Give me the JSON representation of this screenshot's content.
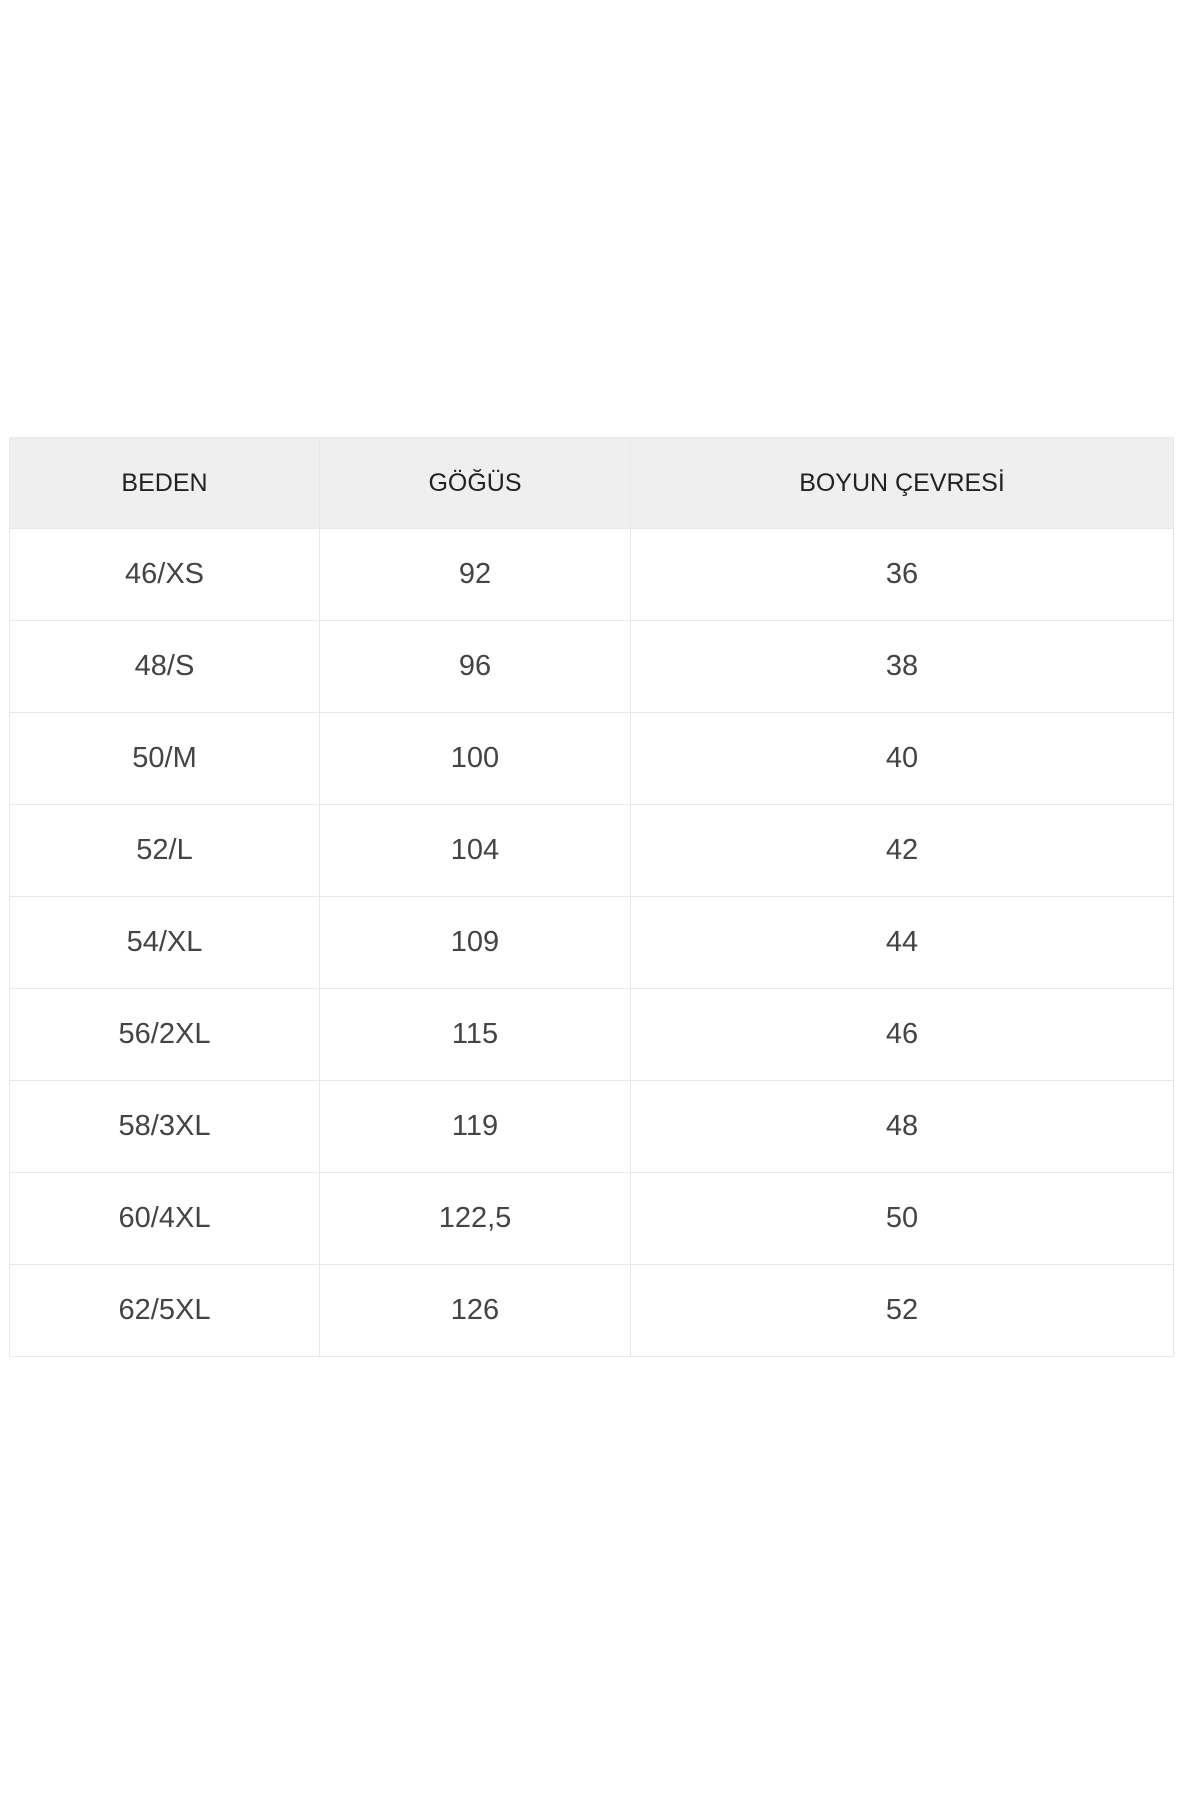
{
  "table": {
    "headers": [
      "BEDEN",
      "GÖĞÜS",
      "BOYUN ÇEVRESİ"
    ],
    "rows": [
      [
        "46/XS",
        "92",
        "36"
      ],
      [
        "48/S",
        "96",
        "38"
      ],
      [
        "50/M",
        "100",
        "40"
      ],
      [
        "52/L",
        "104",
        "42"
      ],
      [
        "54/XL",
        "109",
        "44"
      ],
      [
        "56/2XL",
        "115",
        "46"
      ],
      [
        "58/3XL",
        "119",
        "48"
      ],
      [
        "60/4XL",
        "122,5",
        "50"
      ],
      [
        "62/5XL",
        "126",
        "52"
      ]
    ]
  },
  "colors": {
    "header_bg": "#efefef",
    "border": "#e8e8e8",
    "text": "#444444"
  }
}
